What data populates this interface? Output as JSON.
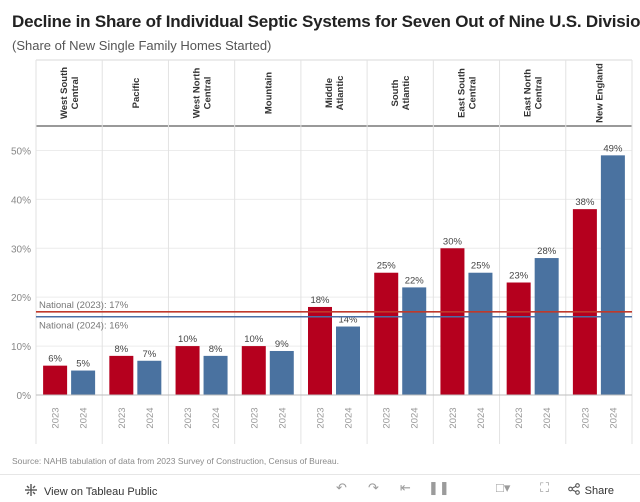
{
  "header": {
    "title": "Decline in Share of Individual Septic Systems for Seven Out of Nine U.S. Divisions",
    "subtitle": "(Share of New Single Family Homes Started)"
  },
  "chart_data": {
    "type": "bar",
    "title": "Decline in Share of Individual Septic Systems for Seven Out of Nine U.S. Divisions",
    "subtitle": "(Share of New Single Family Homes Started)",
    "xlabel": "",
    "ylabel": "",
    "ylim": [
      0,
      55
    ],
    "yticks": [
      0,
      10,
      20,
      30,
      40,
      50
    ],
    "ytick_labels": [
      "0%",
      "10%",
      "20%",
      "30%",
      "40%",
      "50%"
    ],
    "grid": true,
    "years": [
      "2023",
      "2024"
    ],
    "divisions": [
      {
        "name": [
          "West South",
          "Central"
        ],
        "values": [
          6,
          5
        ],
        "labels": [
          "6%",
          "5%"
        ]
      },
      {
        "name": [
          "Pacific"
        ],
        "values": [
          8,
          7
        ],
        "labels": [
          "8%",
          "7%"
        ]
      },
      {
        "name": [
          "West North",
          "Central"
        ],
        "values": [
          10,
          8
        ],
        "labels": [
          "10%",
          "8%"
        ]
      },
      {
        "name": [
          "Mountain"
        ],
        "values": [
          10,
          9
        ],
        "labels": [
          "10%",
          "9%"
        ]
      },
      {
        "name": [
          "Middle",
          "Atlantic"
        ],
        "values": [
          18,
          14
        ],
        "labels": [
          "18%",
          "14%"
        ]
      },
      {
        "name": [
          "South",
          "Atlantic"
        ],
        "values": [
          25,
          22
        ],
        "labels": [
          "25%",
          "22%"
        ]
      },
      {
        "name": [
          "East South",
          "Central"
        ],
        "values": [
          30,
          25
        ],
        "labels": [
          "30%",
          "25%"
        ]
      },
      {
        "name": [
          "East North",
          "Central"
        ],
        "values": [
          23,
          28
        ],
        "labels": [
          "23%",
          "28%"
        ]
      },
      {
        "name": [
          "New England"
        ],
        "values": [
          38,
          49
        ],
        "labels": [
          "38%",
          "49%"
        ]
      }
    ],
    "reference_lines": [
      {
        "label": "National (2023): 17%",
        "value": 17,
        "color": "#c0392b"
      },
      {
        "label": "National (2024): 16%",
        "value": 16,
        "color": "#4a6fa5"
      }
    ],
    "colors": {
      "2023": "#b5001e",
      "2024": "#4a72a0"
    }
  },
  "source": "Source: NAHB tabulation of data from 2023 Survey of Construction, Census of Bureau.",
  "footer": {
    "view_label": "View on Tableau Public",
    "share_label": "Share",
    "icons": [
      "tableau-logo-icon",
      "undo-icon",
      "redo-icon",
      "revert-icon",
      "pause-icon",
      "comment-icon",
      "fullscreen-icon",
      "share-icon"
    ]
  }
}
